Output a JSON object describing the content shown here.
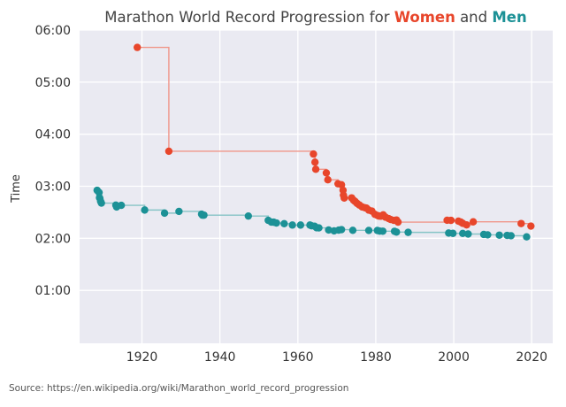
{
  "chart_data": {
    "type": "line",
    "title_parts": [
      {
        "text": "Marathon World Record Progression for ",
        "color": "#444444"
      },
      {
        "text": "Women",
        "color": "#e8462b"
      },
      {
        "text": " and ",
        "color": "#444444"
      },
      {
        "text": "Men",
        "color": "#1c9196"
      }
    ],
    "xlabel": "",
    "ylabel": "Time",
    "xlim": [
      1904,
      2025.4
    ],
    "ylim": [
      "00:00:00",
      "06:00:00"
    ],
    "x_ticks": [
      1920,
      1940,
      1960,
      1980,
      2000,
      2020
    ],
    "y_ticks": [
      "01:00",
      "02:00",
      "03:00",
      "04:00",
      "05:00",
      "06:00"
    ],
    "grid": true,
    "step": "post",
    "series": [
      {
        "name": "Women",
        "color": "#e8462b",
        "line_color": "#f0968a",
        "points": [
          [
            1918.8,
            "5:40:00"
          ],
          [
            1926.9,
            "3:40:22"
          ],
          [
            1964.0,
            "3:37:07"
          ],
          [
            1964.4,
            "3:27:45"
          ],
          [
            1964.6,
            "3:19:33"
          ],
          [
            1967.3,
            "3:15:22"
          ],
          [
            1967.7,
            "3:07:26"
          ],
          [
            1970.3,
            "3:02:53"
          ],
          [
            1971.2,
            "3:01:42"
          ],
          [
            1971.6,
            "2:55:22"
          ],
          [
            1971.7,
            "2:49:40"
          ],
          [
            1971.9,
            "2:46:30"
          ],
          [
            1973.8,
            "2:46:36"
          ],
          [
            1974.3,
            "2:43:54"
          ],
          [
            1974.7,
            "2:42:24"
          ],
          [
            1975.2,
            "2:40:15"
          ],
          [
            1975.8,
            "2:38:19"
          ],
          [
            1976.5,
            "2:36:10"
          ],
          [
            1977.2,
            "2:35:15"
          ],
          [
            1977.6,
            "2:34:47"
          ],
          [
            1978.2,
            "2:32:29"
          ],
          [
            1979.0,
            "2:31:20"
          ],
          [
            1979.8,
            "2:27:32"
          ],
          [
            1980.5,
            "2:26:10"
          ],
          [
            1980.8,
            "2:25:41"
          ],
          [
            1981.3,
            "2:25:29"
          ],
          [
            1981.9,
            "2:27:00"
          ],
          [
            1982.5,
            "2:24:20"
          ],
          [
            1983.3,
            "2:22:43"
          ],
          [
            1983.8,
            "2:21:40"
          ],
          [
            1984.6,
            "2:20:40"
          ],
          [
            1985.3,
            "2:21:06"
          ],
          [
            1985.7,
            "2:18:40"
          ],
          [
            1998.3,
            "2:20:47"
          ],
          [
            1999.3,
            "2:20:43"
          ],
          [
            2001.2,
            "2:19:46"
          ],
          [
            2001.8,
            "2:18:47"
          ],
          [
            2002.3,
            "2:17:18"
          ],
          [
            2003.3,
            "2:15:25"
          ],
          [
            2005.0,
            "2:19:00"
          ],
          [
            2017.3,
            "2:17:01"
          ],
          [
            2019.8,
            "2:14:04"
          ]
        ]
      },
      {
        "name": "Men",
        "color": "#1c9196",
        "line_color": "#86c4c6",
        "points": [
          [
            1908.5,
            "2:55:18"
          ],
          [
            1909.0,
            "2:52:45"
          ],
          [
            1909.1,
            "2:46:52"
          ],
          [
            1909.2,
            "2:46:04"
          ],
          [
            1909.4,
            "2:42:31"
          ],
          [
            1909.6,
            "2:40:34"
          ],
          [
            1913.3,
            "2:38:16"
          ],
          [
            1913.5,
            "2:36:06"
          ],
          [
            1914.7,
            "2:38:00"
          ],
          [
            1920.7,
            "2:32:35"
          ],
          [
            1925.8,
            "2:29:01"
          ],
          [
            1929.5,
            "2:31:00"
          ],
          [
            1935.3,
            "2:27:49"
          ],
          [
            1935.5,
            "2:26:44"
          ],
          [
            1935.9,
            "2:26:42"
          ],
          [
            1947.3,
            "2:25:39"
          ],
          [
            1952.4,
            "2:20:42"
          ],
          [
            1953.2,
            "2:18:40"
          ],
          [
            1953.8,
            "2:18:34"
          ],
          [
            1954.5,
            "2:17:39"
          ],
          [
            1956.5,
            "2:16:50"
          ],
          [
            1958.6,
            "2:15:17"
          ],
          [
            1960.7,
            "2:15:16"
          ],
          [
            1963.1,
            "2:15:15"
          ],
          [
            1963.5,
            "2:14:28"
          ],
          [
            1964.3,
            "2:13:55"
          ],
          [
            1964.8,
            "2:12:11"
          ],
          [
            1965.4,
            "2:12:00"
          ],
          [
            1967.9,
            "2:09:36"
          ],
          [
            1969.3,
            "2:08:33"
          ],
          [
            1970.5,
            "2:09:28"
          ],
          [
            1971.2,
            "2:10:00"
          ],
          [
            1974.1,
            "2:09:12"
          ],
          [
            1978.2,
            "2:09:05"
          ],
          [
            1980.4,
            "2:09:01"
          ],
          [
            1981.0,
            "2:08:18"
          ],
          [
            1981.8,
            "2:08:13"
          ],
          [
            1984.8,
            "2:08:05"
          ],
          [
            1985.3,
            "2:07:12"
          ],
          [
            1988.3,
            "2:06:50"
          ],
          [
            1998.7,
            "2:06:05"
          ],
          [
            1999.8,
            "2:05:42"
          ],
          [
            2002.3,
            "2:05:38"
          ],
          [
            2003.7,
            "2:04:55"
          ],
          [
            2007.7,
            "2:04:26"
          ],
          [
            2008.7,
            "2:03:59"
          ],
          [
            2011.7,
            "2:03:38"
          ],
          [
            2013.7,
            "2:03:23"
          ],
          [
            2014.7,
            "2:02:57"
          ],
          [
            2018.7,
            "2:01:39"
          ]
        ]
      }
    ]
  },
  "source": "Source: https://en.wikipedia.org/wiki/Marathon_world_record_progression"
}
